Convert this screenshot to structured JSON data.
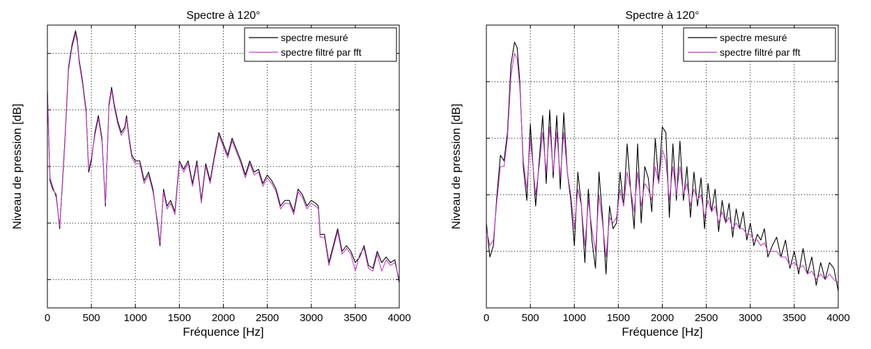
{
  "chart_data": [
    {
      "type": "line",
      "title": "Spectre à 120°",
      "xlabel": "Fréquence [Hz]",
      "ylabel": "Niveau de pression [dB]",
      "xlim": [
        0,
        4000
      ],
      "ylim": [
        0,
        100
      ],
      "xticks": [
        "0",
        "500",
        "1000",
        "1500",
        "2000",
        "2500",
        "3000",
        "3500",
        "4000"
      ],
      "ygrid": [
        10,
        30,
        50,
        70,
        90
      ],
      "grid": true,
      "legend_position": "top-right",
      "series": [
        {
          "name": "spectre mesuré",
          "color": "#000000",
          "x": [
            0,
            30,
            60,
            100,
            140,
            170,
            200,
            240,
            280,
            320,
            340,
            360,
            400,
            440,
            470,
            500,
            540,
            580,
            620,
            660,
            700,
            730,
            760,
            800,
            840,
            880,
            900,
            930,
            960,
            1000,
            1050,
            1100,
            1150,
            1200,
            1250,
            1280,
            1320,
            1360,
            1400,
            1450,
            1500,
            1550,
            1600,
            1650,
            1700,
            1750,
            1800,
            1850,
            1900,
            1950,
            2000,
            2050,
            2100,
            2150,
            2200,
            2250,
            2300,
            2350,
            2400,
            2450,
            2500,
            2550,
            2600,
            2650,
            2700,
            2750,
            2800,
            2850,
            2900,
            2950,
            3000,
            3050,
            3080,
            3100,
            3150,
            3200,
            3250,
            3300,
            3350,
            3400,
            3450,
            3500,
            3550,
            3600,
            3650,
            3700,
            3750,
            3800,
            3850,
            3900,
            3950,
            4000
          ],
          "y": [
            77,
            45,
            42,
            40,
            28,
            44,
            60,
            85,
            93,
            98,
            95,
            88,
            80,
            70,
            48,
            52,
            62,
            68,
            60,
            36,
            72,
            78,
            72,
            66,
            62,
            64,
            68,
            60,
            54,
            52,
            52,
            45,
            48,
            42,
            30,
            22,
            42,
            36,
            38,
            34,
            52,
            49,
            52,
            44,
            52,
            38,
            51,
            45,
            54,
            62,
            58,
            54,
            60,
            56,
            52,
            47,
            52,
            48,
            49,
            44,
            47,
            45,
            42,
            36,
            38,
            38,
            34,
            42,
            40,
            36,
            38,
            37,
            36,
            26,
            26,
            16,
            22,
            28,
            20,
            22,
            20,
            16,
            18,
            22,
            15,
            14,
            20,
            16,
            18,
            16,
            17,
            9
          ]
        },
        {
          "name": "spectre filtré par fft",
          "color": "#c040c0",
          "x": [
            0,
            30,
            60,
            100,
            140,
            170,
            200,
            240,
            280,
            320,
            340,
            360,
            400,
            440,
            470,
            500,
            540,
            580,
            620,
            660,
            700,
            730,
            760,
            800,
            840,
            880,
            900,
            930,
            960,
            1000,
            1050,
            1100,
            1150,
            1200,
            1250,
            1280,
            1320,
            1360,
            1400,
            1450,
            1500,
            1550,
            1600,
            1650,
            1700,
            1750,
            1800,
            1850,
            1900,
            1950,
            2000,
            2050,
            2100,
            2150,
            2200,
            2250,
            2300,
            2350,
            2400,
            2450,
            2500,
            2550,
            2600,
            2650,
            2700,
            2750,
            2800,
            2850,
            2900,
            2950,
            3000,
            3050,
            3080,
            3100,
            3150,
            3200,
            3250,
            3300,
            3350,
            3400,
            3450,
            3500,
            3550,
            3600,
            3650,
            3700,
            3750,
            3800,
            3850,
            3900,
            3950,
            4000
          ],
          "y": [
            76,
            46,
            43,
            39,
            29,
            43,
            59,
            84,
            92,
            97,
            94,
            87,
            79,
            69,
            49,
            53,
            61,
            67,
            59,
            37,
            71,
            77,
            71,
            65,
            61,
            63,
            67,
            59,
            53,
            51,
            51,
            44,
            47,
            41,
            31,
            23,
            41,
            35,
            37,
            33,
            51,
            48,
            51,
            43,
            51,
            37,
            50,
            44,
            53,
            61,
            57,
            53,
            59,
            55,
            51,
            46,
            51,
            47,
            48,
            43,
            46,
            44,
            41,
            35,
            37,
            37,
            33,
            41,
            39,
            35,
            37,
            36,
            35,
            25,
            25,
            15,
            21,
            27,
            19,
            21,
            19,
            13,
            19,
            21,
            14,
            13,
            19,
            13,
            17,
            15,
            16,
            10
          ]
        }
      ]
    },
    {
      "type": "line",
      "title": "Spectre à 120°",
      "xlabel": "Fréquence [Hz]",
      "ylabel": "Niveau de pression [dB]",
      "xlim": [
        0,
        4000
      ],
      "ylim": [
        0,
        100
      ],
      "xticks": [
        "0",
        "500",
        "1000",
        "1500",
        "2000",
        "2500",
        "3000",
        "3500",
        "4000"
      ],
      "ygrid": [
        20,
        40,
        60,
        80
      ],
      "grid": true,
      "legend_position": "top-right",
      "series": [
        {
          "name": "spectre mesuré",
          "color": "#000000",
          "x": [
            0,
            40,
            80,
            120,
            160,
            200,
            240,
            280,
            320,
            350,
            380,
            420,
            460,
            500,
            560,
            600,
            640,
            680,
            720,
            760,
            800,
            840,
            880,
            920,
            960,
            1000,
            1040,
            1080,
            1120,
            1160,
            1200,
            1240,
            1280,
            1320,
            1360,
            1400,
            1440,
            1480,
            1520,
            1560,
            1600,
            1640,
            1680,
            1720,
            1760,
            1800,
            1840,
            1880,
            1920,
            1960,
            2000,
            2040,
            2080,
            2120,
            2160,
            2200,
            2240,
            2280,
            2320,
            2360,
            2400,
            2440,
            2480,
            2520,
            2560,
            2600,
            2640,
            2680,
            2720,
            2760,
            2800,
            2840,
            2880,
            2920,
            2960,
            3000,
            3040,
            3080,
            3120,
            3160,
            3200,
            3250,
            3300,
            3350,
            3400,
            3450,
            3500,
            3550,
            3600,
            3650,
            3700,
            3750,
            3800,
            3850,
            3900,
            3950,
            4000
          ],
          "y": [
            30,
            18,
            22,
            40,
            54,
            52,
            62,
            86,
            94,
            92,
            80,
            50,
            38,
            65,
            36,
            52,
            68,
            44,
            70,
            46,
            68,
            42,
            69,
            48,
            38,
            22,
            48,
            36,
            16,
            42,
            24,
            14,
            48,
            32,
            12,
            36,
            28,
            30,
            48,
            36,
            58,
            42,
            28,
            58,
            30,
            50,
            46,
            34,
            60,
            44,
            64,
            62,
            32,
            58,
            38,
            59,
            38,
            50,
            32,
            48,
            36,
            46,
            28,
            44,
            34,
            42,
            27,
            38,
            30,
            37,
            25,
            35,
            28,
            34,
            24,
            30,
            22,
            26,
            24,
            28,
            18,
            22,
            25,
            18,
            24,
            14,
            20,
            12,
            21,
            12,
            18,
            8,
            16,
            10,
            16,
            14,
            6
          ]
        },
        {
          "name": "spectre filtré par fft",
          "color": "#c040c0",
          "x": [
            0,
            40,
            80,
            120,
            160,
            200,
            240,
            280,
            320,
            350,
            380,
            420,
            460,
            500,
            560,
            600,
            640,
            680,
            720,
            760,
            800,
            840,
            880,
            920,
            960,
            1000,
            1040,
            1080,
            1120,
            1160,
            1200,
            1240,
            1280,
            1320,
            1360,
            1400,
            1440,
            1480,
            1520,
            1560,
            1600,
            1640,
            1680,
            1720,
            1760,
            1800,
            1840,
            1880,
            1920,
            1960,
            2000,
            2040,
            2080,
            2120,
            2160,
            2200,
            2240,
            2280,
            2320,
            2360,
            2400,
            2440,
            2480,
            2520,
            2560,
            2600,
            2640,
            2680,
            2720,
            2760,
            2800,
            2840,
            2880,
            2920,
            2960,
            3000,
            3040,
            3080,
            3120,
            3160,
            3200,
            3250,
            3300,
            3350,
            3400,
            3450,
            3500,
            3550,
            3600,
            3650,
            3700,
            3750,
            3800,
            3850,
            3900,
            3950,
            4000
          ],
          "y": [
            28,
            22,
            24,
            38,
            50,
            50,
            60,
            82,
            90,
            88,
            78,
            52,
            42,
            60,
            40,
            50,
            62,
            48,
            64,
            48,
            62,
            46,
            62,
            48,
            40,
            28,
            42,
            36,
            22,
            38,
            28,
            20,
            40,
            30,
            18,
            32,
            30,
            32,
            42,
            36,
            48,
            42,
            34,
            48,
            36,
            44,
            42,
            38,
            50,
            44,
            56,
            52,
            38,
            50,
            40,
            50,
            40,
            44,
            36,
            42,
            38,
            40,
            32,
            38,
            34,
            36,
            30,
            34,
            30,
            32,
            28,
            30,
            28,
            28,
            26,
            26,
            24,
            24,
            22,
            23,
            20,
            20,
            20,
            18,
            18,
            15,
            16,
            14,
            15,
            12,
            13,
            10,
            12,
            10,
            12,
            10,
            9
          ]
        }
      ]
    }
  ]
}
